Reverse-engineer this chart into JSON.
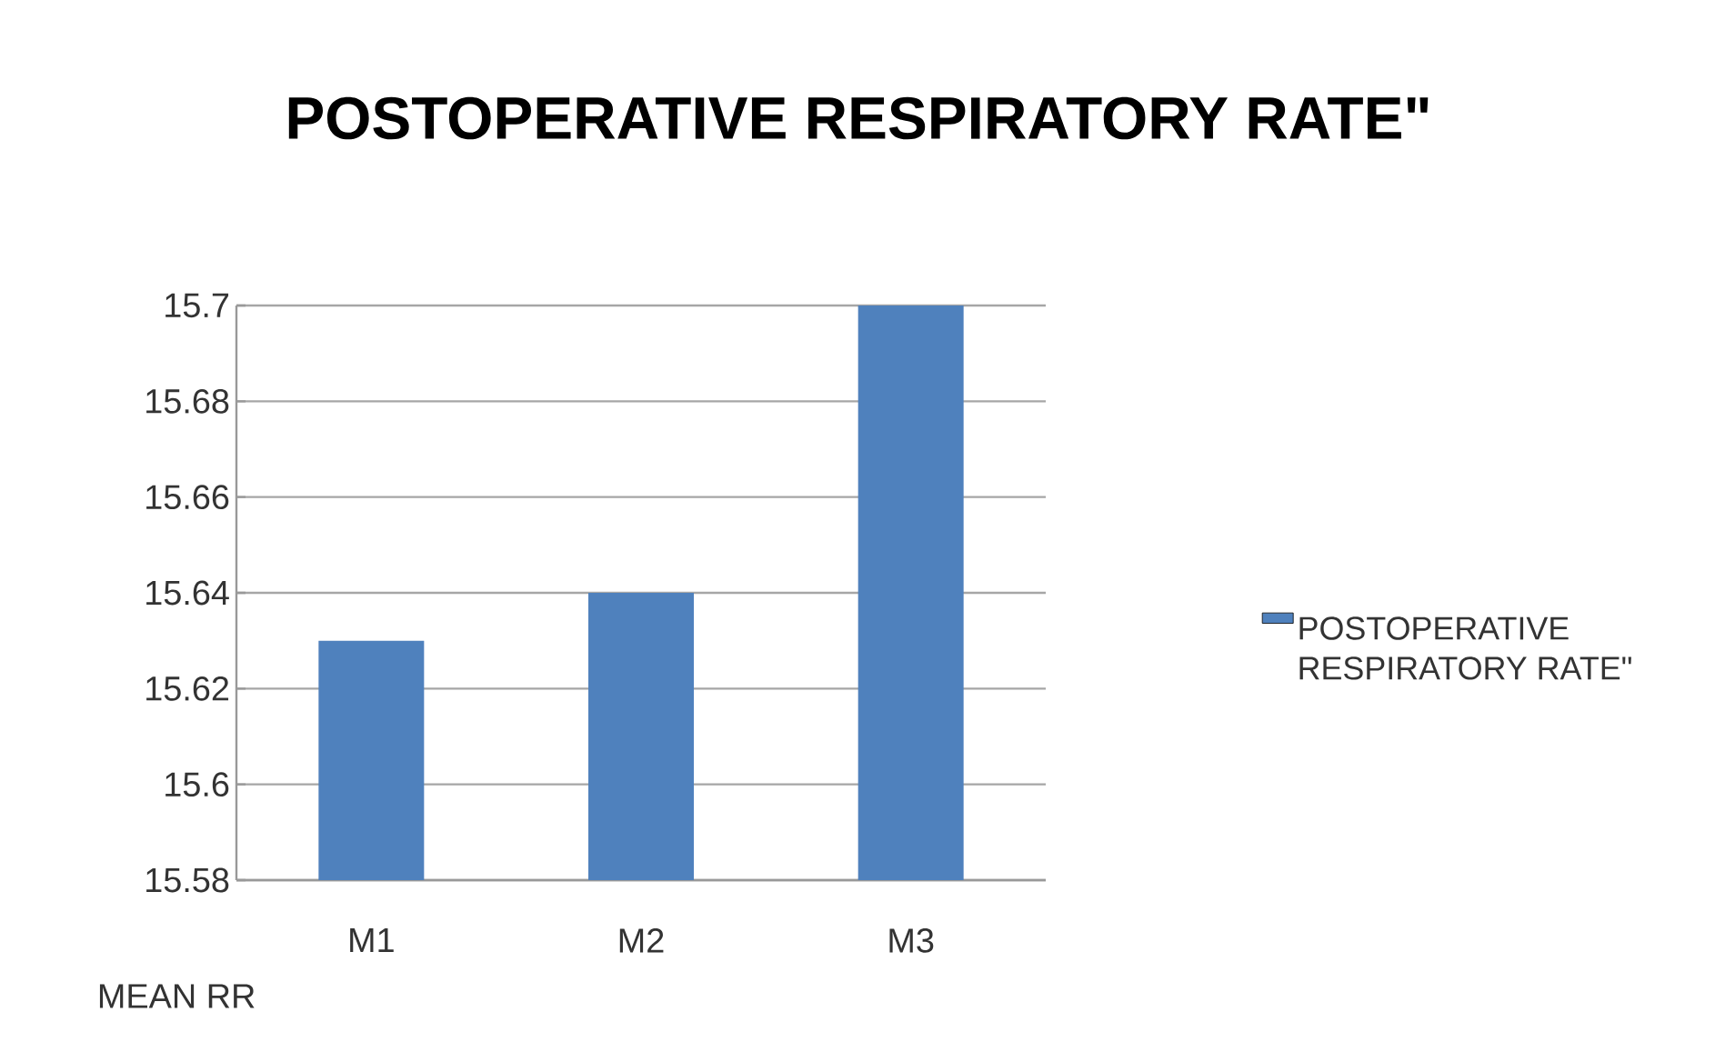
{
  "chart_data": {
    "type": "bar",
    "title": "POSTOPERATIVE RESPIRATORY RATE\"",
    "xlabel": "MEAN RR",
    "categories": [
      "M1",
      "M2",
      "M3"
    ],
    "series": [
      {
        "name": "POSTOPERATIVE RESPIRATORY RATE\"",
        "color": "#4f81bd",
        "values": [
          15.63,
          15.64,
          15.7
        ]
      }
    ],
    "ylim": [
      15.58,
      15.7
    ],
    "yticks": [
      15.58,
      15.6,
      15.62,
      15.64,
      15.66,
      15.68,
      15.7
    ],
    "grid": "y",
    "legend": "right"
  }
}
